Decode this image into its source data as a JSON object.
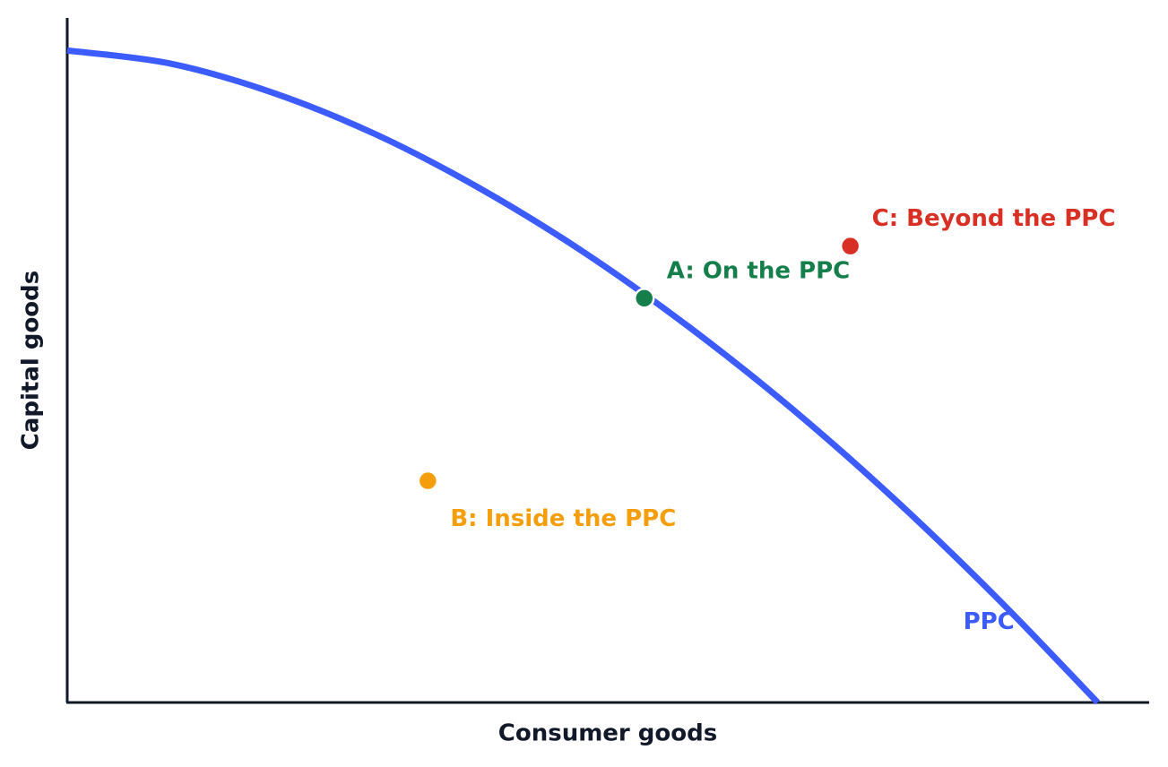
{
  "chart_data": {
    "type": "line",
    "x_label": "Consumer goods",
    "y_label": "Capital goods",
    "xlim": [
      0,
      10.5
    ],
    "ylim": [
      0,
      10.5
    ],
    "series": [
      {
        "name": "PPC",
        "color": "#3d5cff",
        "x": [
          0,
          1,
          2,
          3,
          4,
          5,
          6,
          7,
          8,
          9,
          10
        ],
        "values": [
          10,
          9.8,
          9.35,
          8.71,
          7.89,
          6.92,
          5.8,
          4.55,
          3.16,
          1.64,
          0
        ]
      }
    ],
    "points": [
      {
        "label": "A: On the PPC",
        "color": "#157f4b",
        "x": 5.6,
        "y": 6.2
      },
      {
        "label": "B: Inside the PPC",
        "color": "#f59e0b",
        "x": 3.5,
        "y": 3.4
      },
      {
        "label": "C: Beyond the PPC",
        "color": "#d93025",
        "x": 7.6,
        "y": 7.0
      }
    ]
  }
}
